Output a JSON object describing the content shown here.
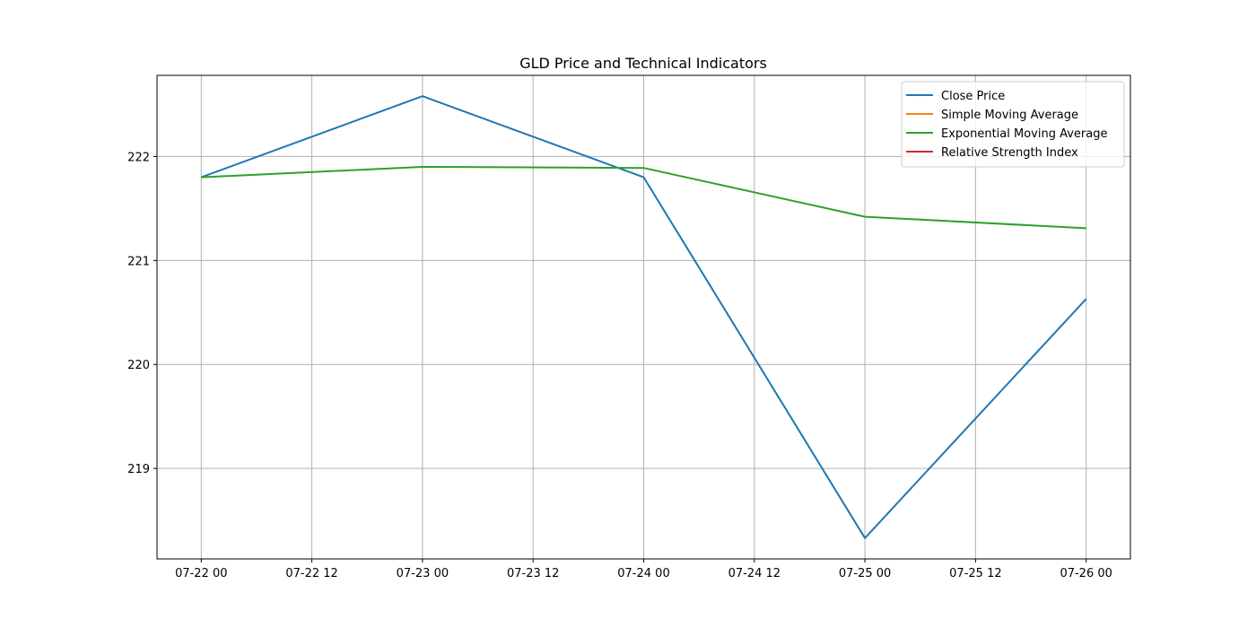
{
  "chart_data": {
    "type": "line",
    "title": "GLD Price and Technical Indicators",
    "xlabel": "",
    "ylabel": "",
    "x": [
      "2024-07-22",
      "2024-07-23",
      "2024-07-24",
      "2024-07-25",
      "2024-07-26"
    ],
    "x_ticks": [
      {
        "at": "2024-07-22 00:00",
        "label": "07-22 00"
      },
      {
        "at": "2024-07-22 12:00",
        "label": "07-22 12"
      },
      {
        "at": "2024-07-23 00:00",
        "label": "07-23 00"
      },
      {
        "at": "2024-07-23 12:00",
        "label": "07-23 12"
      },
      {
        "at": "2024-07-24 00:00",
        "label": "07-24 00"
      },
      {
        "at": "2024-07-24 12:00",
        "label": "07-24 12"
      },
      {
        "at": "2024-07-25 00:00",
        "label": "07-25 00"
      },
      {
        "at": "2024-07-25 12:00",
        "label": "07-25 12"
      },
      {
        "at": "2024-07-26 00:00",
        "label": "07-26 00"
      }
    ],
    "xlim": [
      "2024-07-21 19:12",
      "2024-07-26 04:48"
    ],
    "y_ticks": [
      219,
      220,
      221,
      222
    ],
    "ylim": [
      218.13,
      222.78
    ],
    "grid": true,
    "legend_position": "top-right",
    "series": [
      {
        "name": "Close Price",
        "color": "#1f77b4",
        "values": [
          221.8,
          222.58,
          221.8,
          218.33,
          220.63
        ]
      },
      {
        "name": "Simple Moving Average",
        "color": "#ff7f0e",
        "values": [
          null,
          null,
          null,
          null,
          null
        ]
      },
      {
        "name": "Exponential Moving Average",
        "color": "#2ca02c",
        "values": [
          221.8,
          221.9,
          221.89,
          221.42,
          221.31
        ]
      },
      {
        "name": "Relative Strength Index",
        "color": "#d62728",
        "values": [
          null,
          null,
          null,
          null,
          null
        ]
      }
    ]
  }
}
